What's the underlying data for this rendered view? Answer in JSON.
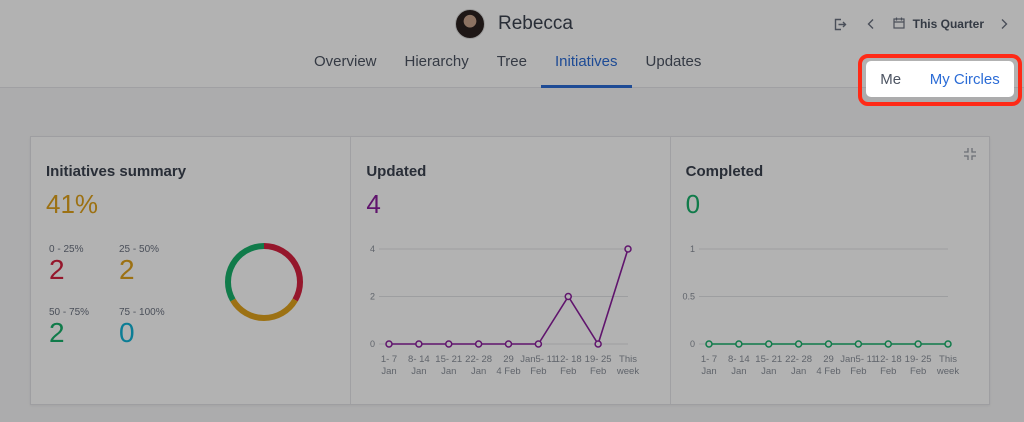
{
  "user": {
    "name": "Rebecca"
  },
  "period": {
    "label": "This Quarter"
  },
  "tabs": [
    {
      "label": "Overview",
      "active": false
    },
    {
      "label": "Hierarchy",
      "active": false
    },
    {
      "label": "Tree",
      "active": false
    },
    {
      "label": "Initiatives",
      "active": true
    },
    {
      "label": "Updates",
      "active": false
    }
  ],
  "scope": {
    "me_label": "Me",
    "circles_label": "My Circles",
    "selected": "My Circles"
  },
  "summary": {
    "title": "Initiatives summary",
    "percent": "41%",
    "buckets": [
      {
        "label": "0 - 25%",
        "value": "2",
        "color": "#d6213f"
      },
      {
        "label": "25 - 50%",
        "value": "2",
        "color": "#e0a21c"
      },
      {
        "label": "50 - 75%",
        "value": "2",
        "color": "#18b06b"
      },
      {
        "label": "75 - 100%",
        "value": "0",
        "color": "#12b3d6"
      }
    ]
  },
  "updated": {
    "title": "Updated",
    "value": "4",
    "color": "#8a1d9c"
  },
  "completed": {
    "title": "Completed",
    "value": "0",
    "color": "#18b06b"
  },
  "colors": {
    "accent": "#2b6cd6",
    "highlight": "#ff2a17",
    "percent": "#e0a21c"
  },
  "chart_data": [
    {
      "type": "pie",
      "categories": [
        "0 - 25%",
        "25 - 50%",
        "50 - 75%",
        "75 - 100%"
      ],
      "values": [
        2,
        2,
        2,
        0
      ],
      "colors": [
        "#d6213f",
        "#e0a21c",
        "#18b06b",
        "#12b3d6"
      ]
    },
    {
      "type": "line",
      "title": "Updated",
      "categories": [
        [
          "1- 7",
          "Jan"
        ],
        [
          "8- 14",
          "Jan"
        ],
        [
          "15- 21",
          "Jan"
        ],
        [
          "22- 28",
          "Jan"
        ],
        [
          "29",
          "4 Feb"
        ],
        [
          "Jan5- 11",
          "Feb"
        ],
        [
          "12- 18",
          "Feb"
        ],
        [
          "19- 25",
          "Feb"
        ],
        [
          "This",
          "week"
        ]
      ],
      "values": [
        0,
        0,
        0,
        0,
        0,
        0,
        2,
        0,
        4
      ],
      "yticks": [
        "0",
        "2",
        "4"
      ],
      "ylim": [
        0,
        4
      ],
      "color": "#8a1d9c"
    },
    {
      "type": "line",
      "title": "Completed",
      "categories": [
        [
          "1- 7",
          "Jan"
        ],
        [
          "8- 14",
          "Jan"
        ],
        [
          "15- 21",
          "Jan"
        ],
        [
          "22- 28",
          "Jan"
        ],
        [
          "29",
          "4 Feb"
        ],
        [
          "Jan5- 11",
          "Feb"
        ],
        [
          "12- 18",
          "Feb"
        ],
        [
          "19- 25",
          "Feb"
        ],
        [
          "This",
          "week"
        ]
      ],
      "values": [
        0,
        0,
        0,
        0,
        0,
        0,
        0,
        0,
        0
      ],
      "yticks": [
        "0",
        "0.5",
        "1"
      ],
      "ylim": [
        0,
        1
      ],
      "color": "#18b06b"
    }
  ]
}
